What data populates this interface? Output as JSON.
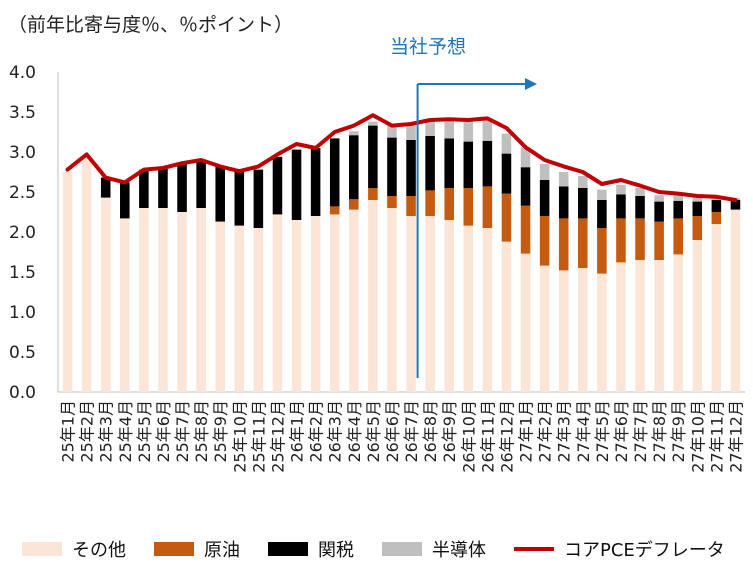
{
  "chart_data": {
    "type": "bar",
    "stacked": true,
    "unit_note": "（前年比寄与度％、％ポイント）",
    "forecast_label": "当社予想",
    "forecast_start": "26年8月",
    "ylim": [
      0.0,
      4.0
    ],
    "yticks": [
      "0.0",
      "0.5",
      "1.0",
      "1.5",
      "2.0",
      "2.5",
      "3.0",
      "3.5",
      "4.0"
    ],
    "categories": [
      "25年1月",
      "25年2月",
      "25年3月",
      "25年4月",
      "25年5月",
      "25年6月",
      "25年7月",
      "25年8月",
      "25年9月",
      "25年10月",
      "25年11月",
      "25年12月",
      "26年1月",
      "26年2月",
      "26年3月",
      "26年4月",
      "26年5月",
      "26年6月",
      "26年7月",
      "26年8月",
      "26年9月",
      "26年10月",
      "26年11月",
      "26年12月",
      "27年1月",
      "27年2月",
      "27年3月",
      "27年4月",
      "27年5月",
      "27年6月",
      "27年7月",
      "27年8月",
      "27年9月",
      "27年10月",
      "27年11月",
      "27年12月"
    ],
    "series": [
      {
        "name": "その他",
        "color": "#fbe5d6",
        "values": [
          2.75,
          2.95,
          2.43,
          2.17,
          2.3,
          2.3,
          2.25,
          2.3,
          2.13,
          2.08,
          2.05,
          2.22,
          2.15,
          2.2,
          2.22,
          2.28,
          2.4,
          2.3,
          2.2,
          2.2,
          2.15,
          2.08,
          2.05,
          1.88,
          1.73,
          1.58,
          1.52,
          1.55,
          1.48,
          1.62,
          1.65,
          1.65,
          1.72,
          1.9,
          2.1,
          2.28
        ]
      },
      {
        "name": "原油",
        "color": "#c55a11",
        "values": [
          0.0,
          0.0,
          0.0,
          0.0,
          0.0,
          0.0,
          0.0,
          0.0,
          0.0,
          0.0,
          0.0,
          0.0,
          0.0,
          0.0,
          0.1,
          0.13,
          0.15,
          0.15,
          0.25,
          0.32,
          0.4,
          0.47,
          0.52,
          0.6,
          0.6,
          0.62,
          0.65,
          0.62,
          0.57,
          0.55,
          0.52,
          0.48,
          0.45,
          0.3,
          0.15,
          0.0
        ]
      },
      {
        "name": "関税",
        "color": "#000000",
        "values": [
          0.0,
          0.0,
          0.25,
          0.45,
          0.48,
          0.5,
          0.6,
          0.6,
          0.7,
          0.67,
          0.73,
          0.72,
          0.88,
          0.85,
          0.85,
          0.8,
          0.78,
          0.73,
          0.7,
          0.68,
          0.62,
          0.58,
          0.57,
          0.5,
          0.48,
          0.45,
          0.4,
          0.38,
          0.35,
          0.3,
          0.28,
          0.25,
          0.22,
          0.18,
          0.15,
          0.12
        ]
      },
      {
        "name": "半導体",
        "color": "#bfbfbf",
        "values": [
          0.0,
          0.0,
          0.0,
          0.0,
          0.0,
          0.0,
          0.0,
          0.0,
          0.0,
          0.0,
          0.0,
          0.0,
          0.0,
          0.0,
          0.0,
          0.05,
          0.05,
          0.15,
          0.2,
          0.2,
          0.22,
          0.25,
          0.27,
          0.25,
          0.25,
          0.2,
          0.18,
          0.15,
          0.13,
          0.12,
          0.1,
          0.08,
          0.07,
          0.05,
          0.04,
          0.02
        ]
      }
    ],
    "line": {
      "name": "コアPCEデフレータ",
      "color": "#c00000",
      "values": [
        2.78,
        2.97,
        2.68,
        2.62,
        2.78,
        2.8,
        2.86,
        2.9,
        2.82,
        2.76,
        2.82,
        2.97,
        3.1,
        3.05,
        3.25,
        3.33,
        3.46,
        3.33,
        3.35,
        3.4,
        3.41,
        3.4,
        3.42,
        3.3,
        3.06,
        2.9,
        2.82,
        2.75,
        2.6,
        2.65,
        2.58,
        2.5,
        2.48,
        2.45,
        2.44,
        2.4
      ]
    },
    "legend_position": "bottom",
    "grid": false
  }
}
